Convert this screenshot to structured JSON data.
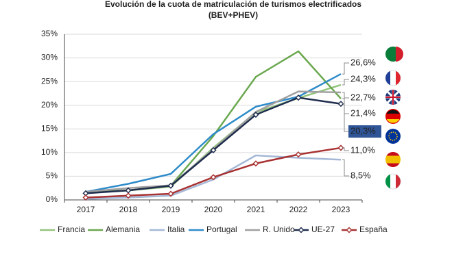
{
  "chart_data": {
    "type": "line",
    "title": "Evolución de la cuota de matriculación de turismos electrificados",
    "subtitle": "(BEV+PHEV)",
    "categories": [
      "2017",
      "2018",
      "2019",
      "2020",
      "2021",
      "2022",
      "2023"
    ],
    "ylim": [
      0,
      35
    ],
    "yticks": [
      {
        "value": 0,
        "label": "0%"
      },
      {
        "value": 5,
        "label": "5%"
      },
      {
        "value": 10,
        "label": "10%"
      },
      {
        "value": 15,
        "label": "15%"
      },
      {
        "value": 20,
        "label": "20%"
      },
      {
        "value": 25,
        "label": "25%"
      },
      {
        "value": 30,
        "label": "30%"
      },
      {
        "value": 35,
        "label": "35%"
      }
    ],
    "grid": true,
    "series": [
      {
        "name": "Francia",
        "color": "#93c47d",
        "values": [
          1.5,
          2.0,
          2.8,
          11.0,
          18.5,
          21.5,
          24.3
        ],
        "value_labels": [
          null,
          null,
          null,
          null,
          null,
          null,
          "24,3%"
        ]
      },
      {
        "name": "Alemania",
        "color": "#6aa84f",
        "values": [
          1.6,
          2.0,
          3.0,
          13.5,
          26.0,
          31.4,
          21.4
        ],
        "value_labels": [
          null,
          null,
          null,
          null,
          null,
          null,
          "21,4%"
        ]
      },
      {
        "name": "Italia",
        "color": "#a4b8d6",
        "values": [
          0.2,
          0.5,
          0.9,
          4.3,
          9.4,
          8.9,
          8.5
        ],
        "value_labels": [
          null,
          null,
          null,
          null,
          null,
          null,
          "8,5%"
        ]
      },
      {
        "name": "Portugal",
        "color": "#2e8bc9",
        "values": [
          1.7,
          3.4,
          5.5,
          13.9,
          19.7,
          21.8,
          26.6
        ],
        "value_labels": [
          null,
          null,
          null,
          null,
          null,
          null,
          "26,6%"
        ]
      },
      {
        "name": "R. Unido",
        "color": "#a0a0a0",
        "values": [
          1.7,
          2.5,
          3.1,
          10.7,
          18.6,
          22.9,
          22.7
        ],
        "value_labels": [
          null,
          null,
          null,
          null,
          null,
          null,
          "22,7%"
        ]
      },
      {
        "name": "UE-27",
        "color": "#1f2d4d",
        "marker": "diamond",
        "label_box": true,
        "values": [
          1.4,
          2.0,
          3.0,
          10.5,
          18.0,
          21.6,
          20.3
        ],
        "value_labels": [
          null,
          null,
          null,
          null,
          null,
          null,
          "20,3%"
        ]
      },
      {
        "name": "España",
        "color": "#a83232",
        "marker": "diamond",
        "values": [
          0.5,
          0.9,
          1.3,
          4.8,
          7.7,
          9.6,
          11.0
        ],
        "value_labels": [
          null,
          null,
          null,
          null,
          null,
          null,
          "11,0%"
        ]
      }
    ]
  }
}
